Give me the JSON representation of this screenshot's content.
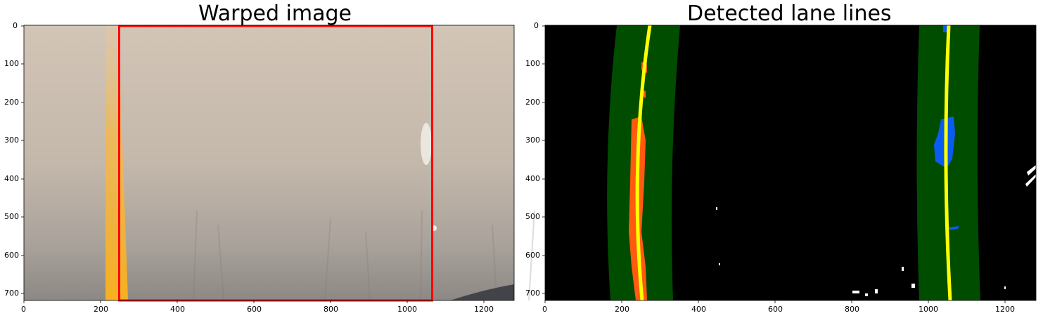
{
  "panels": [
    {
      "title": "Warped image",
      "x_ticks": [
        "0",
        "200",
        "400",
        "600",
        "800",
        "1000",
        "1200"
      ],
      "y_ticks": [
        "0",
        "100",
        "200",
        "300",
        "400",
        "500",
        "600",
        "700"
      ]
    },
    {
      "title": "Detected lane lines",
      "x_ticks": [
        "0",
        "200",
        "400",
        "600",
        "800",
        "1000",
        "1200"
      ],
      "y_ticks": [
        "0",
        "100",
        "200",
        "300",
        "400",
        "500",
        "600",
        "700"
      ]
    }
  ],
  "colors": {
    "road_light": "#cdbfb0",
    "road_dark": "#8f8a86",
    "lane_yellow": "#f6b233",
    "region_red": "#ff0000",
    "search_green": "#004d00",
    "left_pixels": "#ff5a10",
    "right_pixels": "#0a5cf0",
    "fit_line": "#ffff00"
  }
}
